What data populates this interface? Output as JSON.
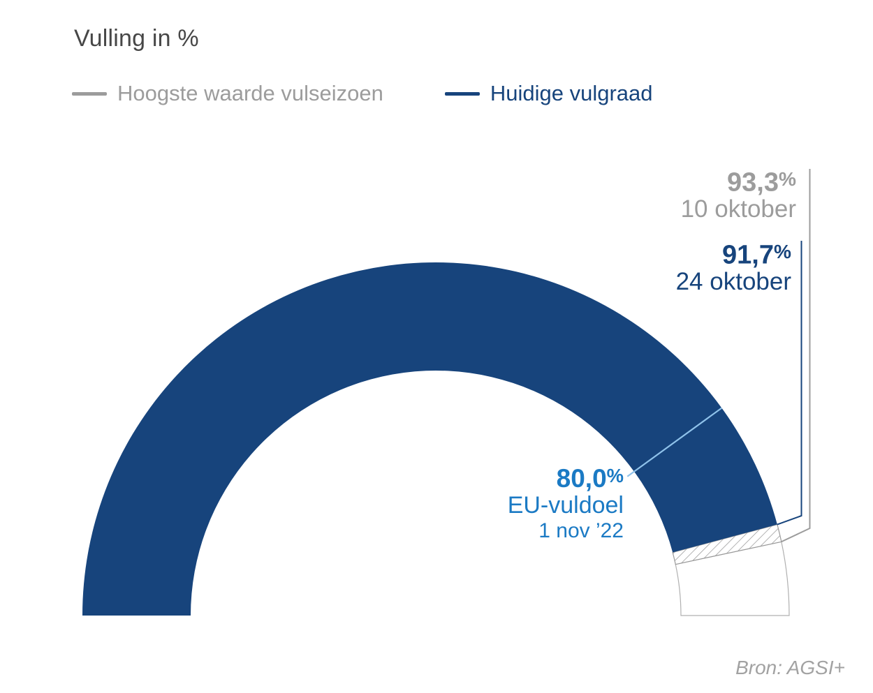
{
  "title": "Vulling in %",
  "legend": {
    "items": [
      {
        "label": "Hoogste waarde vulseizoen",
        "color": "#9c9c9c"
      },
      {
        "label": "Huidige vulgraad",
        "color": "#17447c"
      }
    ]
  },
  "annotations": {
    "highest": {
      "value": "93,3",
      "unit": "%",
      "date": "10 oktober"
    },
    "current": {
      "value": "91,7",
      "unit": "%",
      "date": "24 oktober"
    },
    "target": {
      "value": "80,0",
      "unit": "%",
      "name": "EU-vuldoel",
      "date": "1 nov ’22"
    }
  },
  "source": "Bron: AGSI+",
  "colors": {
    "fill_current": "#17447c",
    "leader_current": "#17447c",
    "leader_highest": "#9c9c9c",
    "leader_target": "#8fc2ea",
    "hatch_stroke": "#999999",
    "empty_stroke": "#b0b0b0",
    "empty_fill": "#ffffff"
  },
  "chart_data": {
    "type": "gauge",
    "title": "Vulling in %",
    "unit": "%",
    "range": [
      0,
      100
    ],
    "shape": "semicircle-donut",
    "series": [
      {
        "name": "Huidige vulgraad",
        "value": 91.7,
        "date": "24 oktober",
        "style": "solid-fill",
        "color": "#17447c"
      },
      {
        "name": "Hoogste waarde vulseizoen",
        "value": 93.3,
        "date": "10 oktober",
        "style": "hatched-band-upper-bound",
        "color": "#9c9c9c"
      },
      {
        "name": "EU-vuldoel",
        "value": 80.0,
        "date": "1 nov ’22",
        "style": "radial-marker-line",
        "color": "#1b7ac4"
      }
    ],
    "legend_position": "top",
    "source": "Bron: AGSI+"
  }
}
